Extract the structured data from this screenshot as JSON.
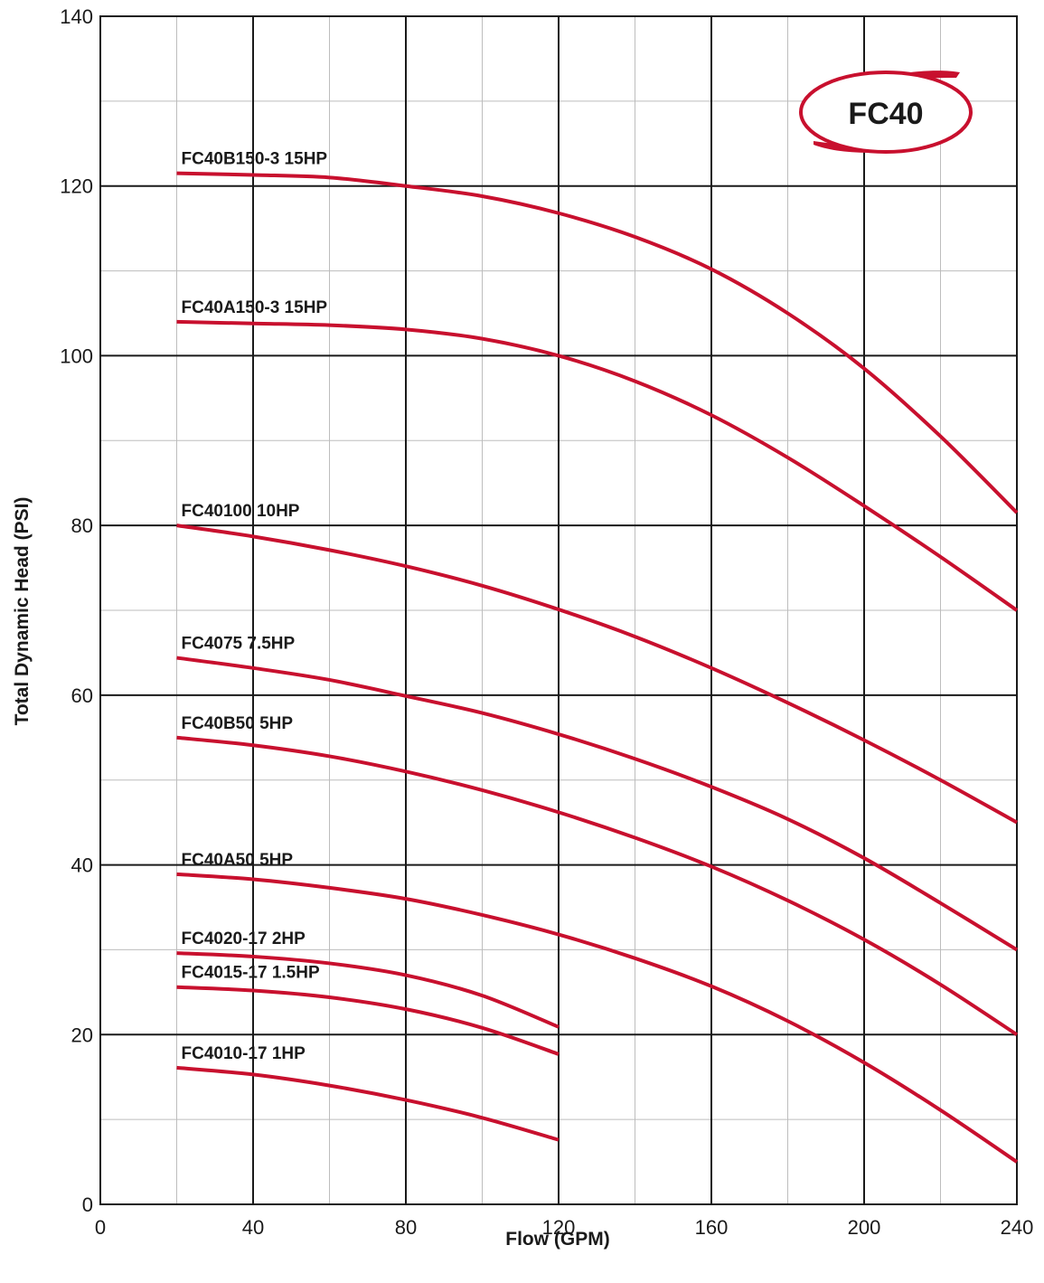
{
  "chart_data": {
    "type": "line",
    "xlabel": "Flow (GPM)",
    "ylabel": "Total Dynamic Head (PSI)",
    "xlim": [
      0,
      240
    ],
    "ylim": [
      0,
      140
    ],
    "x_ticks": [
      0,
      40,
      80,
      120,
      160,
      200,
      240
    ],
    "y_ticks": [
      0,
      20,
      40,
      60,
      80,
      100,
      120,
      140
    ],
    "grid": true,
    "major_grid_step": {
      "x": 40,
      "y": 20
    },
    "minor_grid_step": {
      "x": 20,
      "y": 10
    },
    "line_color": "#c8102e",
    "logo": {
      "text": "FC40",
      "color": "#c8102e"
    },
    "series": [
      {
        "name": "FC40B150-3  15HP",
        "x": [
          20,
          40,
          60,
          80,
          100,
          120,
          140,
          160,
          180,
          200,
          220,
          240
        ],
        "y": [
          121.5,
          121.3,
          121,
          120,
          118.8,
          116.8,
          114,
          110.2,
          105,
          98.5,
          90.5,
          81.5
        ]
      },
      {
        "name": "FC40A150-3  15HP",
        "x": [
          20,
          40,
          60,
          80,
          100,
          120,
          140,
          160,
          180,
          200,
          220,
          240
        ],
        "y": [
          104,
          103.8,
          103.6,
          103.1,
          102,
          100,
          97,
          93,
          88,
          82.3,
          76.3,
          70
        ]
      },
      {
        "name": "FC40100  10HP",
        "x": [
          20,
          40,
          60,
          80,
          100,
          120,
          140,
          160,
          180,
          200,
          220,
          240
        ],
        "y": [
          80,
          78.7,
          77.1,
          75.2,
          72.9,
          70.1,
          66.9,
          63.2,
          59.1,
          54.7,
          50,
          45
        ]
      },
      {
        "name": "FC4075  7.5HP",
        "x": [
          20,
          40,
          60,
          80,
          100,
          120,
          140,
          160,
          180,
          200,
          220,
          240
        ],
        "y": [
          64.4,
          63.2,
          61.8,
          59.9,
          57.9,
          55.4,
          52.5,
          49.2,
          45.4,
          40.8,
          35.5,
          30
        ]
      },
      {
        "name": "FC40B50  5HP",
        "x": [
          20,
          40,
          60,
          80,
          100,
          120,
          140,
          160,
          180,
          200,
          220,
          240
        ],
        "y": [
          55,
          54.1,
          52.8,
          51,
          48.8,
          46.2,
          43.2,
          39.8,
          35.8,
          31.2,
          25.9,
          20
        ]
      },
      {
        "name": "FC40A50  5HP",
        "x": [
          20,
          40,
          60,
          80,
          100,
          120,
          140,
          160,
          180,
          200,
          220,
          240
        ],
        "y": [
          38.9,
          38.3,
          37.3,
          36,
          34.1,
          31.8,
          29,
          25.7,
          21.6,
          16.7,
          11.1,
          5
        ]
      },
      {
        "name": "FC4020-17  2HP",
        "x": [
          20,
          40,
          60,
          80,
          100,
          120
        ],
        "y": [
          29.6,
          29.2,
          28.4,
          27,
          24.6,
          20.9
        ]
      },
      {
        "name": "FC4015-17  1.5HP",
        "x": [
          20,
          40,
          60,
          80,
          100,
          120
        ],
        "y": [
          25.6,
          25.2,
          24.4,
          23,
          20.8,
          17.7
        ]
      },
      {
        "name": "FC4010-17  1HP",
        "x": [
          20,
          40,
          60,
          80,
          100,
          120
        ],
        "y": [
          16.1,
          15.3,
          14,
          12.3,
          10.2,
          7.6
        ]
      }
    ]
  }
}
